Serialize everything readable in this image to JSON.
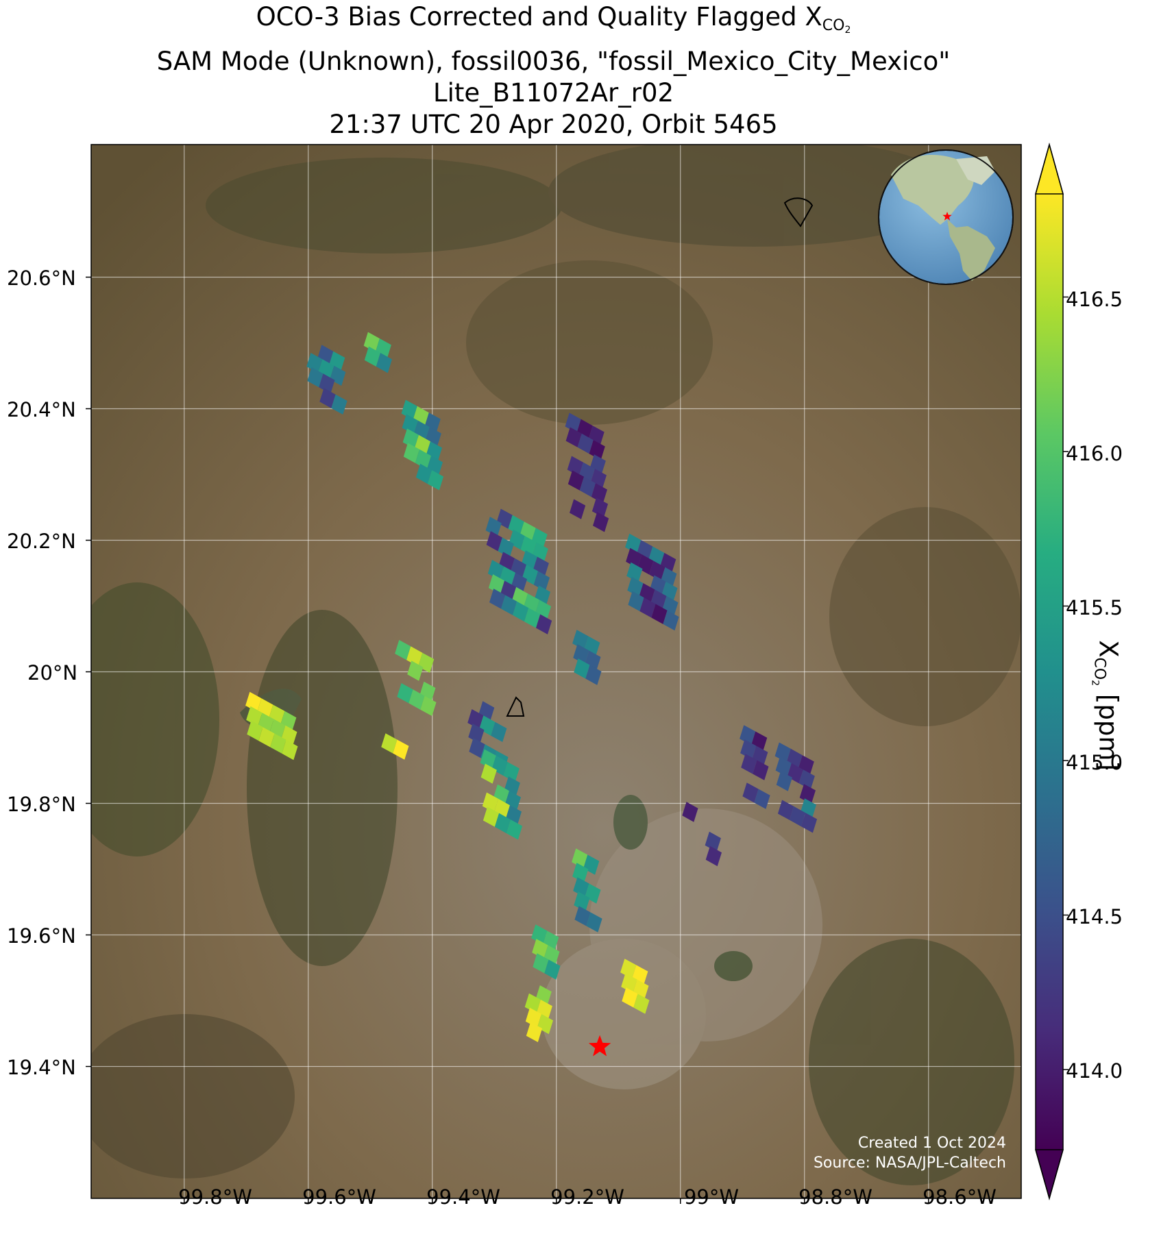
{
  "title": {
    "line1_prefix": "OCO-3 Bias Corrected and Quality Flagged X",
    "line1_sub": "CO",
    "line1_subsub": "2",
    "line2": "SAM Mode (Unknown), fossil0036, \"fossil_Mexico_City_Mexico\"",
    "line3": "Lite_B11072Ar_r02",
    "line4": "21:37 UTC 20 Apr 2020, Orbit 5465"
  },
  "map": {
    "basemap": "satellite-imagery",
    "gridlines": true,
    "lon_range": [
      -99.95,
      -98.52
    ],
    "lat_range": [
      19.2,
      20.8
    ],
    "y_ticks": [
      "20.6°N",
      "20.4°N",
      "20.2°N",
      "20°N",
      "19.8°N",
      "19.6°N",
      "19.4°N"
    ],
    "x_ticks": [
      "99.8°W",
      "99.6°W",
      "99.4°W",
      "99.2°W",
      "99°W",
      "98.8°W",
      "98.6°W"
    ],
    "target_marker": {
      "icon": "red-star-icon",
      "color": "#ff0000",
      "lon": -99.13,
      "lat": 19.43
    },
    "inset_globe": {
      "icon": "globe-icon",
      "marker_color": "#ff0000",
      "ocean_color": "#6ea3cc"
    }
  },
  "colorbar": {
    "colormap": "viridis",
    "range": [
      413.7,
      416.9
    ],
    "extend": "both",
    "ticks": [
      "414.0",
      "414.5",
      "415.0",
      "415.5",
      "416.0",
      "416.5"
    ],
    "label_prefix": "X",
    "label_sub": "CO",
    "label_subsub": "2",
    "label_suffix": " [ppm]"
  },
  "credits": {
    "created": "Created 1 Oct 2024",
    "source": "Source: NASA/JPL-Caltech"
  }
}
